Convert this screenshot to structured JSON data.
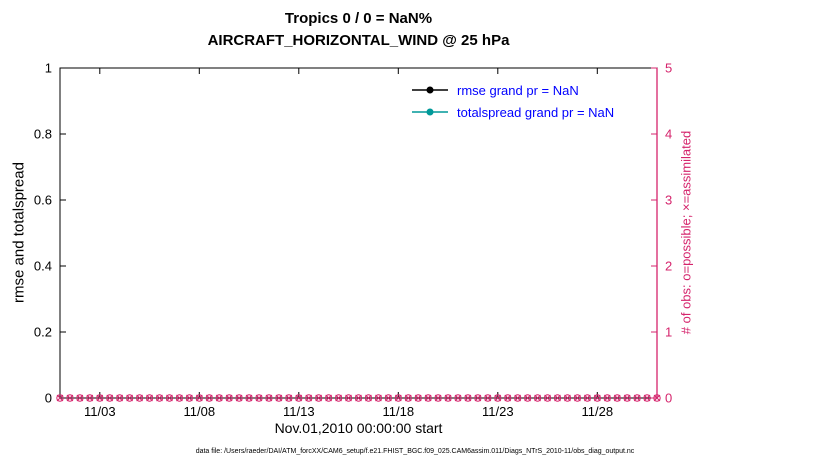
{
  "figure": {
    "title_line1": "Tropics 0 / 0 = NaN%",
    "title_line2": "AIRCRAFT_HORIZONTAL_WIND @ 25 hPa",
    "footer": "data file: /Users/raeder/DAI/ATM_forcXX/CAM6_setup/f.e21.FHIST_BGC.f09_025.CAM6assim.011/Diags_NTrS_2010-11/obs_diag_output.nc"
  },
  "colors": {
    "obs_pink": "#d5246c",
    "axis_black": "#000000",
    "legend_text_blue": "#0000ff",
    "totalspread_teal": "#009999"
  },
  "legend": {
    "text_color": "#0000ff",
    "items": [
      {
        "label": "rmse grand pr = NaN",
        "color": "#000000",
        "marker": "dot"
      },
      {
        "label": "totalspread grand pr = NaN",
        "color": "#009999",
        "marker": "dot"
      }
    ]
  },
  "chart_data": {
    "type": "line",
    "title": "Tropics 0 / 0 = NaN%",
    "subtitle": "AIRCRAFT_HORIZONTAL_WIND @ 25 hPa",
    "xlabel": "Nov.01,2010 00:00:00 start",
    "x_tick_labels": [
      "11/03",
      "11/08",
      "11/13",
      "11/18",
      "11/23",
      "11/28"
    ],
    "x_tick_days": [
      3,
      8,
      13,
      18,
      23,
      28
    ],
    "xlim_days": [
      1,
      31
    ],
    "grid": false,
    "legend_position": "upper-right-inside",
    "left_axis": {
      "label": "rmse and totalspread",
      "ticks": [
        0,
        0.2,
        0.4,
        0.6,
        0.8,
        1
      ],
      "ylim": [
        0,
        1
      ],
      "color": "#000000"
    },
    "right_axis": {
      "label": "# of obs: o=possible; ×=assimilated",
      "ticks": [
        0,
        1,
        2,
        3,
        4,
        5
      ],
      "ylim": [
        0,
        5
      ],
      "color": "#d5246c"
    },
    "series": [
      {
        "name": "rmse",
        "legend": "rmse grand pr = NaN",
        "axis": "left",
        "color": "#000000",
        "values": [],
        "note": "no data plotted (grand prior = NaN)"
      },
      {
        "name": "totalspread",
        "legend": "totalspread grand pr = NaN",
        "axis": "left",
        "color": "#009999",
        "values": [],
        "note": "no data plotted (grand prior = NaN)"
      },
      {
        "name": "possible-obs",
        "axis": "right",
        "marker": "o",
        "color": "#d5246c",
        "x_days": {
          "start": 1,
          "step": 0.5,
          "n": 61
        },
        "value_all": 0,
        "note": "observation count possible = 0 at every time"
      },
      {
        "name": "assimilated-obs",
        "axis": "right",
        "marker": "x",
        "color": "#d5246c",
        "x_days": {
          "start": 1,
          "step": 0.5,
          "n": 61
        },
        "value_all": 0,
        "note": "observation count assimilated = 0 at every time"
      }
    ]
  }
}
